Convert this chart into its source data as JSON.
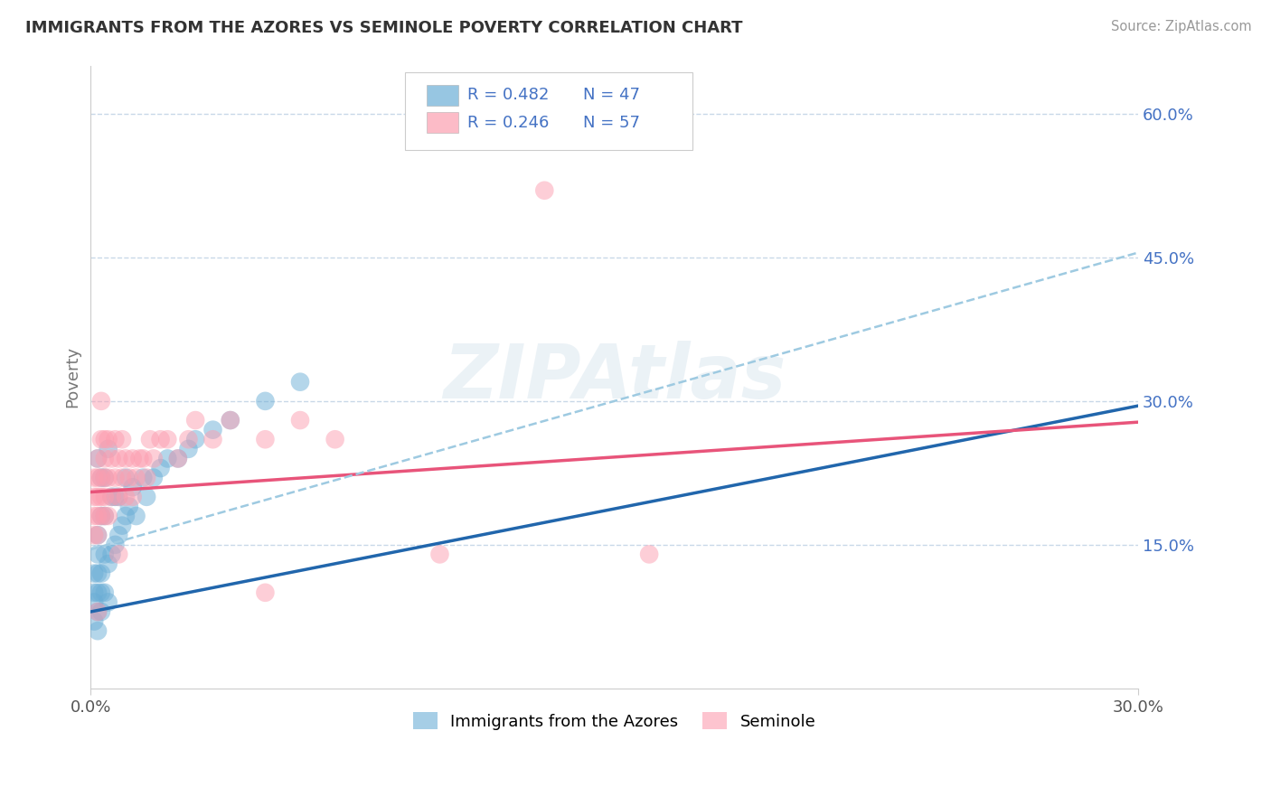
{
  "title": "IMMIGRANTS FROM THE AZORES VS SEMINOLE POVERTY CORRELATION CHART",
  "source": "Source: ZipAtlas.com",
  "ylabel": "Poverty",
  "xlim": [
    0.0,
    0.3
  ],
  "ylim": [
    0.0,
    0.65
  ],
  "x_ticks": [
    0.0,
    0.3
  ],
  "x_tick_labels": [
    "0.0%",
    "30.0%"
  ],
  "y_ticks_right": [
    0.15,
    0.3,
    0.45,
    0.6
  ],
  "y_tick_labels_right": [
    "15.0%",
    "30.0%",
    "45.0%",
    "60.0%"
  ],
  "series1_color": "#6baed6",
  "series2_color": "#fc9eb0",
  "series1_label": "Immigrants from the Azores",
  "series2_label": "Seminole",
  "watermark": "ZIPAtlas",
  "background_color": "#ffffff",
  "grid_color": "#c8d8e8",
  "azores_scatter_x": [
    0.001,
    0.001,
    0.001,
    0.001,
    0.002,
    0.002,
    0.002,
    0.002,
    0.002,
    0.002,
    0.003,
    0.003,
    0.003,
    0.003,
    0.003,
    0.004,
    0.004,
    0.004,
    0.004,
    0.005,
    0.005,
    0.005,
    0.006,
    0.006,
    0.007,
    0.007,
    0.008,
    0.008,
    0.009,
    0.01,
    0.01,
    0.011,
    0.012,
    0.013,
    0.015,
    0.016,
    0.018,
    0.02,
    0.022,
    0.025,
    0.028,
    0.03,
    0.035,
    0.04,
    0.05,
    0.06,
    0.002
  ],
  "azores_scatter_y": [
    0.07,
    0.09,
    0.1,
    0.12,
    0.06,
    0.08,
    0.1,
    0.12,
    0.14,
    0.16,
    0.08,
    0.1,
    0.12,
    0.18,
    0.22,
    0.1,
    0.14,
    0.18,
    0.22,
    0.09,
    0.13,
    0.25,
    0.14,
    0.2,
    0.15,
    0.2,
    0.16,
    0.2,
    0.17,
    0.18,
    0.22,
    0.19,
    0.21,
    0.18,
    0.22,
    0.2,
    0.22,
    0.23,
    0.24,
    0.24,
    0.25,
    0.26,
    0.27,
    0.28,
    0.3,
    0.32,
    0.24
  ],
  "seminole_scatter_x": [
    0.001,
    0.001,
    0.001,
    0.001,
    0.002,
    0.002,
    0.002,
    0.002,
    0.002,
    0.003,
    0.003,
    0.003,
    0.003,
    0.004,
    0.004,
    0.004,
    0.004,
    0.005,
    0.005,
    0.005,
    0.006,
    0.006,
    0.007,
    0.007,
    0.008,
    0.008,
    0.009,
    0.009,
    0.01,
    0.01,
    0.011,
    0.012,
    0.013,
    0.014,
    0.015,
    0.016,
    0.017,
    0.018,
    0.02,
    0.022,
    0.025,
    0.028,
    0.03,
    0.035,
    0.04,
    0.05,
    0.06,
    0.07,
    0.13,
    0.16,
    0.003,
    0.004,
    0.008,
    0.012,
    0.05,
    0.1,
    0.002
  ],
  "seminole_scatter_y": [
    0.16,
    0.18,
    0.2,
    0.22,
    0.16,
    0.18,
    0.2,
    0.22,
    0.24,
    0.18,
    0.2,
    0.22,
    0.26,
    0.18,
    0.2,
    0.24,
    0.26,
    0.18,
    0.22,
    0.26,
    0.2,
    0.24,
    0.22,
    0.26,
    0.2,
    0.24,
    0.22,
    0.26,
    0.2,
    0.24,
    0.22,
    0.24,
    0.22,
    0.24,
    0.24,
    0.22,
    0.26,
    0.24,
    0.26,
    0.26,
    0.24,
    0.26,
    0.28,
    0.26,
    0.28,
    0.26,
    0.28,
    0.26,
    0.52,
    0.14,
    0.3,
    0.22,
    0.14,
    0.2,
    0.1,
    0.14,
    0.08
  ],
  "azores_trend_x0": 0.0,
  "azores_trend_x1": 0.3,
  "azores_trend_y0": 0.08,
  "azores_trend_y1": 0.295,
  "seminole_trend_x0": 0.0,
  "seminole_trend_x1": 0.3,
  "seminole_trend_y0": 0.205,
  "seminole_trend_y1": 0.278,
  "dashed_trend_x0": 0.0,
  "dashed_trend_x1": 0.3,
  "dashed_trend_y0": 0.145,
  "dashed_trend_y1": 0.455
}
